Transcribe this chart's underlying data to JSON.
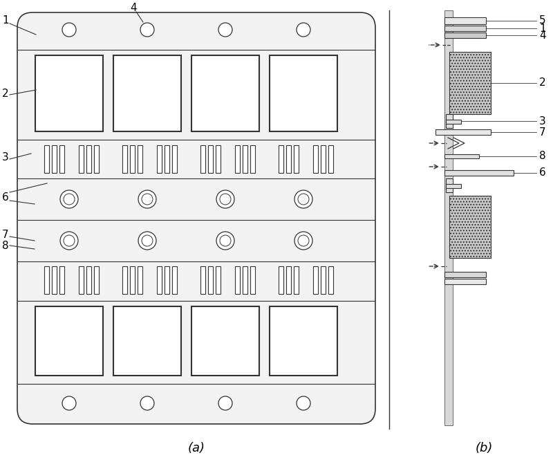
{
  "bg_color": "#ffffff",
  "lc": "#555555",
  "lc_dark": "#333333",
  "board_fc": "#f0f0f0",
  "fig_width": 8.0,
  "fig_height": 6.81,
  "label_a": "(a)",
  "label_b": "(b)"
}
